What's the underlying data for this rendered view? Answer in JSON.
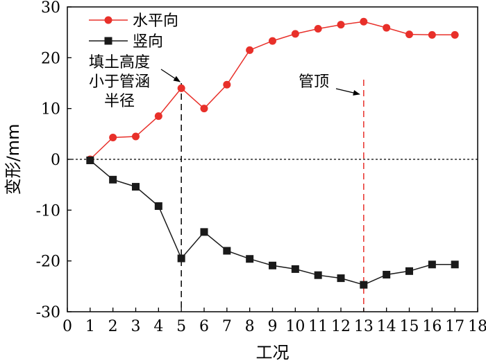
{
  "chart_data": {
    "type": "line",
    "xlabel": "工况",
    "ylabel": "变形/mm",
    "xlim": [
      0,
      18
    ],
    "ylim": [
      -30,
      30
    ],
    "x_ticks": [
      0,
      1,
      2,
      3,
      4,
      5,
      6,
      7,
      8,
      9,
      10,
      11,
      12,
      13,
      14,
      15,
      16,
      17,
      18
    ],
    "y_ticks": [
      -30,
      -20,
      -10,
      0,
      10,
      20,
      30
    ],
    "grid": false,
    "legend_position": "top-left",
    "x": [
      1,
      2,
      3,
      4,
      5,
      6,
      7,
      8,
      9,
      10,
      11,
      12,
      13,
      14,
      15,
      16,
      17
    ],
    "series": [
      {
        "name": "水平向",
        "marker": "circle",
        "color": "#e8302a",
        "values": [
          0,
          4.3,
          4.5,
          8.5,
          14,
          10,
          14.7,
          21.5,
          23.3,
          24.7,
          25.7,
          26.5,
          27.1,
          25.9,
          24.6,
          24.5,
          24.5
        ]
      },
      {
        "name": "竖向",
        "marker": "square",
        "color": "#1a1a1a",
        "values": [
          -0.2,
          -4,
          -5.4,
          -9.2,
          -19.5,
          -14.3,
          -18,
          -19.6,
          -20.9,
          -21.6,
          -22.8,
          -23.4,
          -24.7,
          -22.7,
          -22,
          -20.7,
          -20.7
        ]
      }
    ],
    "reference_lines": [
      {
        "axis": "y",
        "value": 0,
        "style": "dotted",
        "color": "#000000"
      },
      {
        "axis": "x",
        "value": 5,
        "style": "dashed",
        "color": "#000000"
      },
      {
        "axis": "x",
        "value": 13,
        "style": "dashed",
        "color": "#e8302a"
      }
    ],
    "annotations": [
      {
        "lines": [
          "填土高度",
          "小于管涵",
          "半径"
        ],
        "points_to_x": 5
      },
      {
        "lines": [
          "管顶"
        ],
        "points_to_x": 13
      }
    ]
  }
}
